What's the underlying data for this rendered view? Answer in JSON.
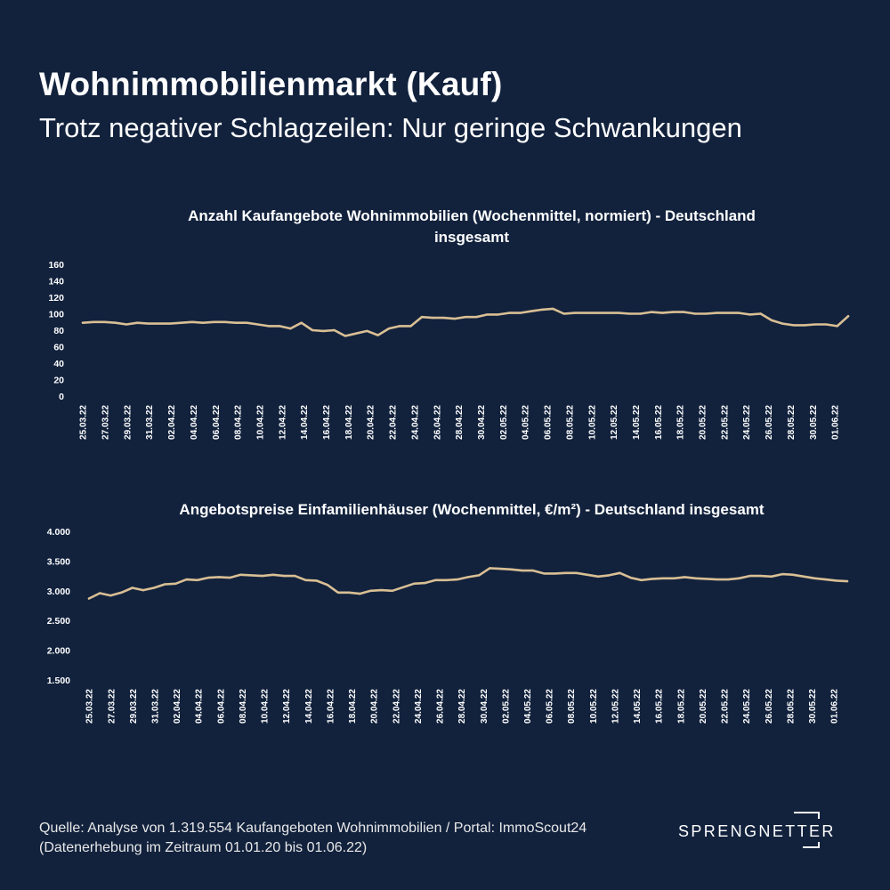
{
  "header": {
    "title": "Wohnimmobilienmarkt (Kauf)",
    "subtitle": "Trotz negativer Schlagzeilen: Nur geringe Schwankungen"
  },
  "colors": {
    "background": "#12223d",
    "line": "#d9bf94",
    "text": "#ffffff"
  },
  "chart_data": [
    {
      "type": "line",
      "title": "Anzahl Kaufangebote Wohnimmobilien (Wochenmittel, normiert) - Deutschland insgesamt",
      "title_line1": "Anzahl Kaufangebote Wohnimmobilien (Wochenmittel, normiert) - Deutschland",
      "title_line2": "insgesamt",
      "ylim": [
        0,
        160
      ],
      "yticks": [
        "0",
        "20",
        "40",
        "60",
        "80",
        "100",
        "120",
        "140",
        "160"
      ],
      "ytick_values": [
        0,
        20,
        40,
        60,
        80,
        100,
        120,
        140,
        160
      ],
      "xtick_labels": [
        "25.03.22",
        "27.03.22",
        "29.03.22",
        "31.03.22",
        "02.04.22",
        "04.04.22",
        "06.04.22",
        "08.04.22",
        "10.04.22",
        "12.04.22",
        "14.04.22",
        "16.04.22",
        "18.04.22",
        "20.04.22",
        "22.04.22",
        "24.04.22",
        "26.04.22",
        "28.04.22",
        "30.04.22",
        "02.05.22",
        "04.05.22",
        "06.05.22",
        "08.05.22",
        "10.05.22",
        "12.05.22",
        "14.05.22",
        "16.05.22",
        "18.05.22",
        "20.05.22",
        "22.05.22",
        "24.05.22",
        "26.05.22",
        "28.05.22",
        "30.05.22",
        "01.06.22"
      ],
      "values": [
        89,
        90,
        90,
        89,
        87,
        89,
        88,
        88,
        88,
        89,
        90,
        89,
        90,
        90,
        89,
        89,
        87,
        85,
        85,
        82,
        89,
        80,
        79,
        80,
        73,
        76,
        79,
        74,
        82,
        85,
        85,
        96,
        95,
        95,
        94,
        96,
        96,
        99,
        99,
        101,
        101,
        103,
        105,
        106,
        100,
        101,
        101,
        101,
        101,
        101,
        100,
        100,
        102,
        101,
        102,
        102,
        100,
        100,
        101,
        101,
        101,
        99,
        100,
        92,
        88,
        86,
        86,
        87,
        87,
        85,
        97
      ],
      "grid": false
    },
    {
      "type": "line",
      "title": "Angebotspreise Einfamilienhäuser (Wochenmittel, €/m²) - Deutschland insgesamt",
      "ylim": [
        1500,
        4000
      ],
      "yticks": [
        "1.500",
        "2.000",
        "2.500",
        "3.000",
        "3.500",
        "4.000"
      ],
      "ytick_values": [
        1500,
        2000,
        2500,
        3000,
        3500,
        4000
      ],
      "xtick_labels": [
        "25.03.22",
        "27.03.22",
        "29.03.22",
        "31.03.22",
        "02.04.22",
        "04.04.22",
        "06.04.22",
        "08.04.22",
        "10.04.22",
        "12.04.22",
        "14.04.22",
        "16.04.22",
        "18.04.22",
        "20.04.22",
        "22.04.22",
        "24.04.22",
        "26.04.22",
        "28.04.22",
        "30.04.22",
        "02.05.22",
        "04.05.22",
        "06.05.22",
        "08.05.22",
        "10.05.22",
        "12.05.22",
        "14.05.22",
        "16.05.22",
        "18.05.22",
        "20.05.22",
        "22.05.22",
        "24.05.22",
        "26.05.22",
        "28.05.22",
        "30.05.22",
        "01.06.22"
      ],
      "values": [
        2870,
        2960,
        2920,
        2970,
        3050,
        3010,
        3050,
        3110,
        3120,
        3190,
        3180,
        3220,
        3230,
        3220,
        3270,
        3260,
        3250,
        3270,
        3250,
        3250,
        3180,
        3170,
        3100,
        2970,
        2970,
        2950,
        3000,
        3010,
        3000,
        3060,
        3120,
        3130,
        3180,
        3180,
        3190,
        3230,
        3260,
        3380,
        3370,
        3360,
        3340,
        3340,
        3290,
        3290,
        3300,
        3300,
        3270,
        3240,
        3260,
        3300,
        3220,
        3180,
        3200,
        3210,
        3210,
        3230,
        3210,
        3200,
        3190,
        3190,
        3210,
        3250,
        3250,
        3240,
        3280,
        3270,
        3240,
        3210,
        3190,
        3170,
        3160
      ],
      "grid": false
    }
  ],
  "footer": {
    "line1": "Quelle: Analyse von 1.319.554 Kaufangeboten Wohnimmobilien / Portal: ImmoScout24",
    "line2": "(Datenerhebung im Zeitraum  01.01.20 bis 01.06.22)"
  },
  "logo": {
    "text": "SPRENGNETTER"
  }
}
